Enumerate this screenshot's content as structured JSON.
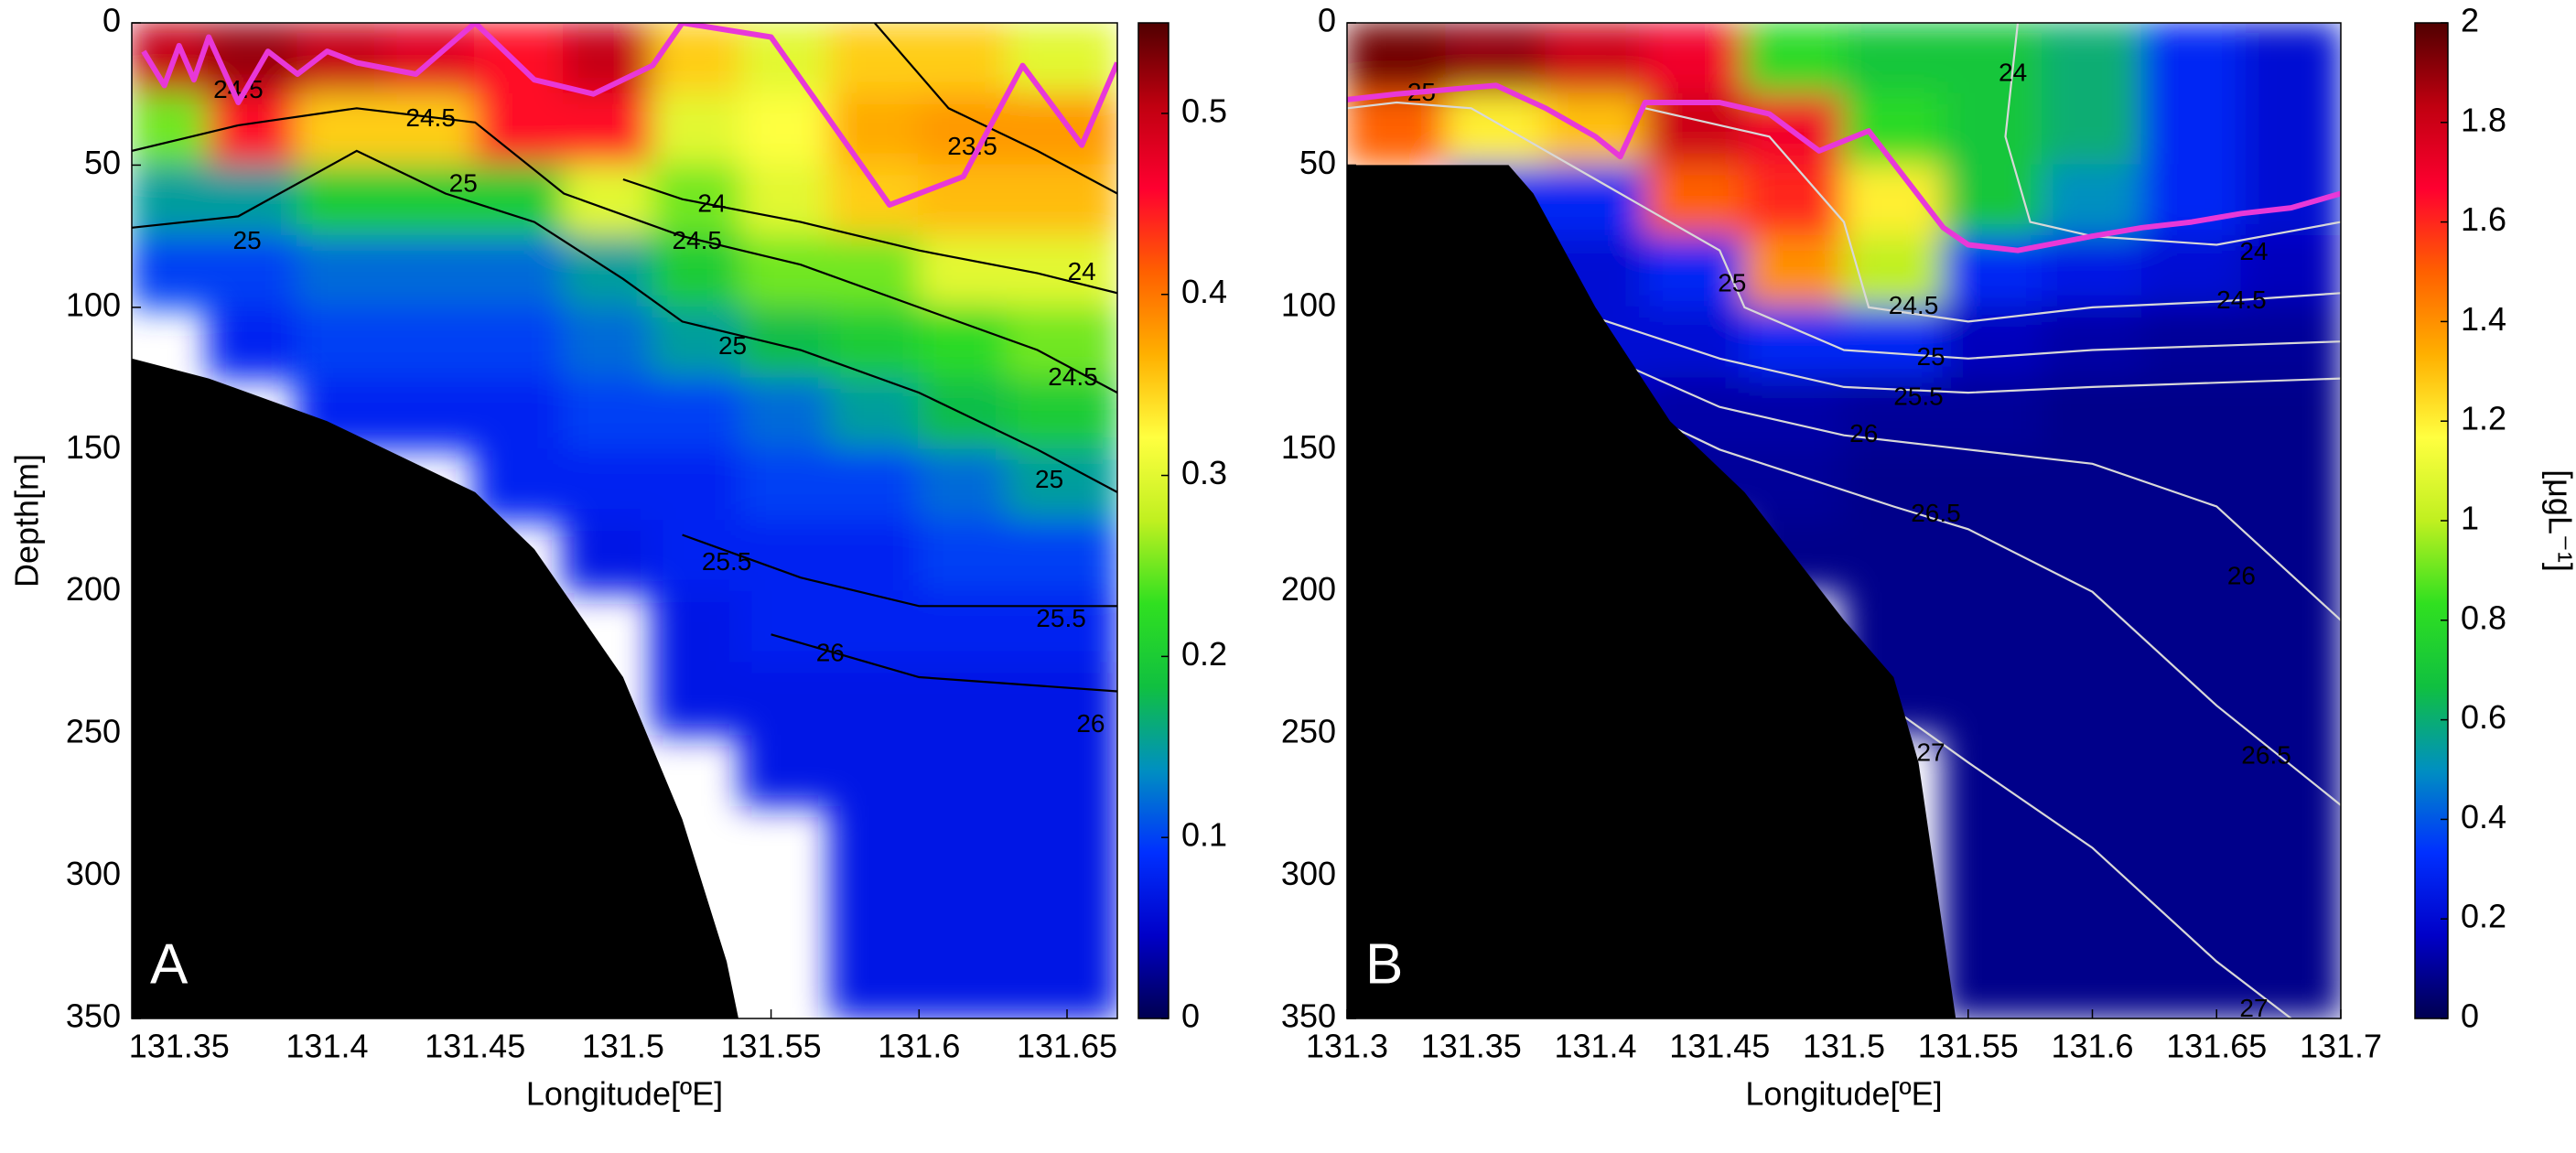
{
  "chart_data": [
    {
      "type": "heatmap",
      "panel_label": "A",
      "xlabel": "Longitude[ºE]",
      "ylabel": "Depth[m]",
      "xlim": [
        131.334,
        131.667
      ],
      "ylim": [
        0,
        350
      ],
      "y_reversed": true,
      "xticks": [
        131.35,
        131.4,
        131.45,
        131.5,
        131.55,
        131.6,
        131.65
      ],
      "yticks": [
        0,
        50,
        100,
        150,
        200,
        250,
        300,
        350
      ],
      "clim": [
        0,
        0.55
      ],
      "cticks": [
        0,
        0.1,
        0.2,
        0.3,
        0.4,
        0.5
      ],
      "colormap": [
        "#000050",
        "#0000c8",
        "#0030ff",
        "#0090c0",
        "#10c040",
        "#30e020",
        "#c0f020",
        "#ffff40",
        "#ffb000",
        "#ff6000",
        "#ff0030",
        "#c00010",
        "#500000"
      ],
      "x": [
        131.345,
        131.375,
        131.405,
        131.435,
        131.465,
        131.495,
        131.525,
        131.555,
        131.585,
        131.615,
        131.645
      ],
      "y": [
        12.5,
        37.5,
        62.5,
        87.5,
        112.5,
        137.5,
        162.5,
        187.5,
        212.5,
        237.5,
        262.5,
        287.5
      ],
      "z": [
        [
          0.5,
          0.52,
          0.5,
          0.48,
          0.45,
          0.5,
          0.35,
          0.3,
          0.35,
          0.35,
          0.3
        ],
        [
          0.25,
          0.45,
          0.35,
          0.35,
          0.45,
          0.45,
          0.3,
          0.32,
          0.37,
          0.38,
          0.38
        ],
        [
          0.15,
          0.15,
          0.2,
          0.2,
          0.2,
          0.3,
          0.25,
          0.3,
          0.35,
          0.36,
          0.36
        ],
        [
          0.1,
          0.1,
          0.12,
          0.12,
          0.12,
          0.15,
          0.2,
          0.25,
          0.25,
          0.3,
          0.3
        ],
        [
          null,
          0.08,
          0.1,
          0.1,
          0.1,
          0.12,
          0.15,
          0.18,
          0.2,
          0.22,
          0.25
        ],
        [
          null,
          null,
          0.08,
          0.08,
          0.08,
          0.1,
          0.1,
          0.12,
          0.15,
          0.18,
          0.2
        ],
        [
          null,
          null,
          null,
          null,
          0.08,
          0.08,
          0.08,
          0.1,
          0.1,
          0.12,
          0.15
        ],
        [
          null,
          null,
          null,
          null,
          null,
          0.07,
          0.08,
          0.08,
          0.08,
          0.1,
          0.1
        ],
        [
          null,
          null,
          null,
          null,
          null,
          null,
          0.07,
          0.08,
          0.08,
          0.08,
          0.08
        ],
        [
          null,
          null,
          null,
          null,
          null,
          null,
          0.07,
          0.07,
          0.07,
          0.07,
          0.07
        ],
        [
          null,
          null,
          null,
          null,
          null,
          null,
          null,
          0.07,
          0.07,
          0.07,
          0.07
        ],
        [
          null,
          null,
          null,
          null,
          null,
          null,
          null,
          null,
          0.07,
          0.07,
          0.07
        ]
      ],
      "contour_color": "#000000",
      "contours": [
        {
          "level": 24,
          "x": [
            131.5,
            131.52,
            131.56,
            131.6,
            131.64,
            131.667
          ],
          "y": [
            55,
            62,
            70,
            80,
            88,
            95
          ],
          "labels": [
            [
              131.53,
              64
            ],
            [
              131.655,
              88
            ]
          ]
        },
        {
          "level": 24.5,
          "x": [
            131.334,
            131.37,
            131.41,
            131.45,
            131.48,
            131.52,
            131.56,
            131.6,
            131.64,
            131.667
          ],
          "y": [
            45,
            36,
            30,
            35,
            60,
            75,
            85,
            100,
            115,
            130
          ],
          "labels": [
            [
              131.37,
              24
            ],
            [
              131.435,
              34
            ],
            [
              131.525,
              77
            ],
            [
              131.652,
              125
            ]
          ]
        },
        {
          "level": 25,
          "x": [
            131.334,
            131.37,
            131.41,
            131.44,
            131.47,
            131.5,
            131.52,
            131.56,
            131.6,
            131.64,
            131.667
          ],
          "y": [
            72,
            68,
            45,
            60,
            70,
            90,
            105,
            115,
            130,
            150,
            165
          ],
          "labels": [
            [
              131.373,
              77
            ],
            [
              131.446,
              57
            ],
            [
              131.537,
              114
            ],
            [
              131.644,
              161
            ]
          ]
        },
        {
          "level": 25.5,
          "x": [
            131.52,
            131.56,
            131.6,
            131.667
          ],
          "y": [
            180,
            195,
            205,
            205
          ],
          "labels": [
            [
              131.535,
              190
            ],
            [
              131.648,
              210
            ]
          ]
        },
        {
          "level": 26,
          "x": [
            131.55,
            131.6,
            131.667
          ],
          "y": [
            215,
            230,
            235
          ],
          "labels": [
            [
              131.57,
              222
            ],
            [
              131.658,
              247
            ]
          ]
        },
        {
          "level": 23.5,
          "x": [
            131.585,
            131.61,
            131.64,
            131.667
          ],
          "y": [
            0,
            30,
            45,
            60
          ],
          "labels": [
            [
              131.618,
              44
            ]
          ]
        }
      ],
      "line_color": "#e838d8",
      "line": {
        "x": [
          131.338,
          131.345,
          131.35,
          131.355,
          131.36,
          131.37,
          131.38,
          131.39,
          131.4,
          131.41,
          131.43,
          131.45,
          131.47,
          131.49,
          131.51,
          131.52,
          131.55,
          131.59,
          131.615,
          131.635,
          131.655,
          131.667
        ],
        "y": [
          10,
          22,
          8,
          20,
          5,
          28,
          10,
          18,
          10,
          14,
          18,
          0,
          20,
          25,
          15,
          0,
          5,
          64,
          54,
          15,
          43,
          14
        ]
      },
      "seafloor": {
        "x": [
          131.334,
          131.36,
          131.4,
          131.45,
          131.47,
          131.5,
          131.52,
          131.535,
          131.539
        ],
        "y": [
          118,
          125,
          140,
          165,
          185,
          230,
          280,
          330,
          350
        ]
      }
    },
    {
      "type": "heatmap",
      "panel_label": "B",
      "xlabel": "Longitude[ºE]",
      "colorbar_label": "[μgL⁻¹]",
      "xlim": [
        131.3,
        131.7
      ],
      "ylim": [
        0,
        350
      ],
      "y_reversed": true,
      "xticks": [
        131.3,
        131.35,
        131.4,
        131.45,
        131.5,
        131.55,
        131.6,
        131.65,
        131.7
      ],
      "yticks": [
        0,
        50,
        100,
        150,
        200,
        250,
        300,
        350
      ],
      "clim": [
        0,
        2
      ],
      "cticks": [
        0,
        0.2,
        0.4,
        0.6,
        0.8,
        1,
        1.2,
        1.4,
        1.6,
        1.8,
        2
      ],
      "colormap": [
        "#000050",
        "#0000c8",
        "#0030ff",
        "#0090c0",
        "#10c040",
        "#30e020",
        "#c0f020",
        "#ffff40",
        "#ffb000",
        "#ff6000",
        "#ff0030",
        "#c00010",
        "#500000"
      ],
      "x": [
        131.32,
        131.36,
        131.4,
        131.44,
        131.48,
        131.52,
        131.56,
        131.6,
        131.64,
        131.68
      ],
      "y": [
        12.5,
        37.5,
        62.5,
        87.5,
        112.5,
        137.5,
        162.5,
        187.5,
        212.5,
        237.5,
        262.5,
        287.5,
        312.5,
        337.5
      ],
      "z": [
        [
          1.95,
          1.9,
          1.8,
          1.7,
          0.8,
          0.7,
          0.7,
          0.6,
          0.3,
          0.2
        ],
        [
          1.5,
          1.2,
          1.3,
          1.8,
          1.7,
          0.8,
          0.7,
          0.6,
          0.3,
          0.2
        ],
        [
          null,
          0.3,
          0.3,
          1.5,
          1.6,
          1.2,
          0.7,
          0.5,
          0.3,
          0.2
        ],
        [
          null,
          0.2,
          0.2,
          0.3,
          1.4,
          1.0,
          0.3,
          0.25,
          0.2,
          0.15
        ],
        [
          null,
          null,
          0.2,
          0.2,
          0.3,
          0.3,
          0.15,
          0.12,
          0.1,
          0.1
        ],
        [
          null,
          null,
          0.15,
          0.12,
          0.12,
          0.1,
          0.1,
          0.08,
          0.08,
          0.08
        ],
        [
          null,
          null,
          null,
          0.1,
          0.1,
          0.08,
          0.08,
          0.08,
          0.08,
          0.08
        ],
        [
          null,
          null,
          null,
          null,
          0.08,
          0.08,
          0.08,
          0.08,
          0.08,
          0.08
        ],
        [
          null,
          null,
          null,
          null,
          null,
          0.08,
          0.08,
          0.08,
          0.08,
          0.08
        ],
        [
          null,
          null,
          null,
          null,
          null,
          0.08,
          0.08,
          0.08,
          0.08,
          0.08
        ],
        [
          null,
          null,
          null,
          null,
          null,
          null,
          0.08,
          0.08,
          0.08,
          0.08
        ],
        [
          null,
          null,
          null,
          null,
          null,
          null,
          0.08,
          0.08,
          0.08,
          0.08
        ],
        [
          null,
          null,
          null,
          null,
          null,
          null,
          0.08,
          0.08,
          0.08,
          0.08
        ],
        [
          null,
          null,
          null,
          null,
          null,
          null,
          0.08,
          0.08,
          0.08,
          0.08
        ]
      ],
      "contour_color": "#d8d8d8",
      "contours": [
        {
          "level": 25,
          "x": [
            131.3,
            131.32,
            131.35,
            131.37,
            131.41,
            131.45,
            131.46,
            131.5,
            131.55,
            131.6,
            131.7
          ],
          "y": [
            30,
            28,
            30,
            40,
            60,
            80,
            100,
            115,
            118,
            115,
            112
          ],
          "labels": [
            [
              131.33,
              25
            ],
            [
              131.455,
              92
            ],
            [
              131.535,
              118
            ]
          ]
        },
        {
          "level": 24.5,
          "x": [
            131.42,
            131.47,
            131.5,
            131.51,
            131.55,
            131.6,
            131.65,
            131.7
          ],
          "y": [
            30,
            40,
            70,
            100,
            105,
            100,
            98,
            95
          ],
          "labels": [
            [
              131.528,
              100
            ],
            [
              131.66,
              98
            ]
          ]
        },
        {
          "level": 24,
          "x": [
            131.57,
            131.565,
            131.575,
            131.6,
            131.65,
            131.7
          ],
          "y": [
            0,
            40,
            70,
            75,
            78,
            70
          ],
          "labels": [
            [
              131.568,
              18
            ],
            [
              131.665,
              81
            ]
          ]
        },
        {
          "level": 25.5,
          "x": [
            131.37,
            131.45,
            131.5,
            131.55,
            131.6,
            131.7
          ],
          "y": [
            95,
            118,
            128,
            130,
            128,
            125
          ],
          "labels": [
            [
              131.395,
              112
            ],
            [
              131.53,
              132
            ]
          ]
        },
        {
          "level": 26,
          "x": [
            131.38,
            131.45,
            131.5,
            131.55,
            131.6,
            131.65,
            131.7
          ],
          "y": [
            108,
            135,
            145,
            150,
            155,
            170,
            210
          ],
          "labels": [
            [
              131.385,
              107
            ],
            [
              131.508,
              145
            ],
            [
              131.66,
              195
            ]
          ]
        },
        {
          "level": 26.5,
          "x": [
            131.39,
            131.45,
            131.52,
            131.55,
            131.6,
            131.65,
            131.7
          ],
          "y": [
            125,
            150,
            170,
            178,
            200,
            240,
            275
          ],
          "labels": [
            [
              131.39,
              125
            ],
            [
              131.537,
              173
            ],
            [
              131.67,
              258
            ]
          ]
        },
        {
          "level": 27,
          "x": [
            131.51,
            131.55,
            131.6,
            131.65,
            131.68
          ],
          "y": [
            235,
            260,
            290,
            330,
            350
          ],
          "labels": [
            [
              131.535,
              257
            ],
            [
              131.665,
              347
            ]
          ]
        }
      ],
      "line_color": "#e838d8",
      "line": {
        "x": [
          131.3,
          131.32,
          131.36,
          131.38,
          131.4,
          131.41,
          131.42,
          131.45,
          131.47,
          131.49,
          131.51,
          131.54,
          131.55,
          131.57,
          131.6,
          131.62,
          131.64,
          131.66,
          131.68,
          131.7
        ],
        "y": [
          27,
          25,
          22,
          30,
          40,
          47,
          28,
          28,
          32,
          45,
          38,
          72,
          78,
          80,
          75,
          72,
          70,
          67,
          65,
          60
        ]
      },
      "seafloor": {
        "x": [
          131.3,
          131.365,
          131.375,
          131.4,
          131.43,
          131.46,
          131.5,
          131.52,
          131.53,
          131.545
        ],
        "y": [
          50,
          50,
          60,
          100,
          140,
          165,
          210,
          230,
          260,
          350
        ]
      }
    }
  ]
}
